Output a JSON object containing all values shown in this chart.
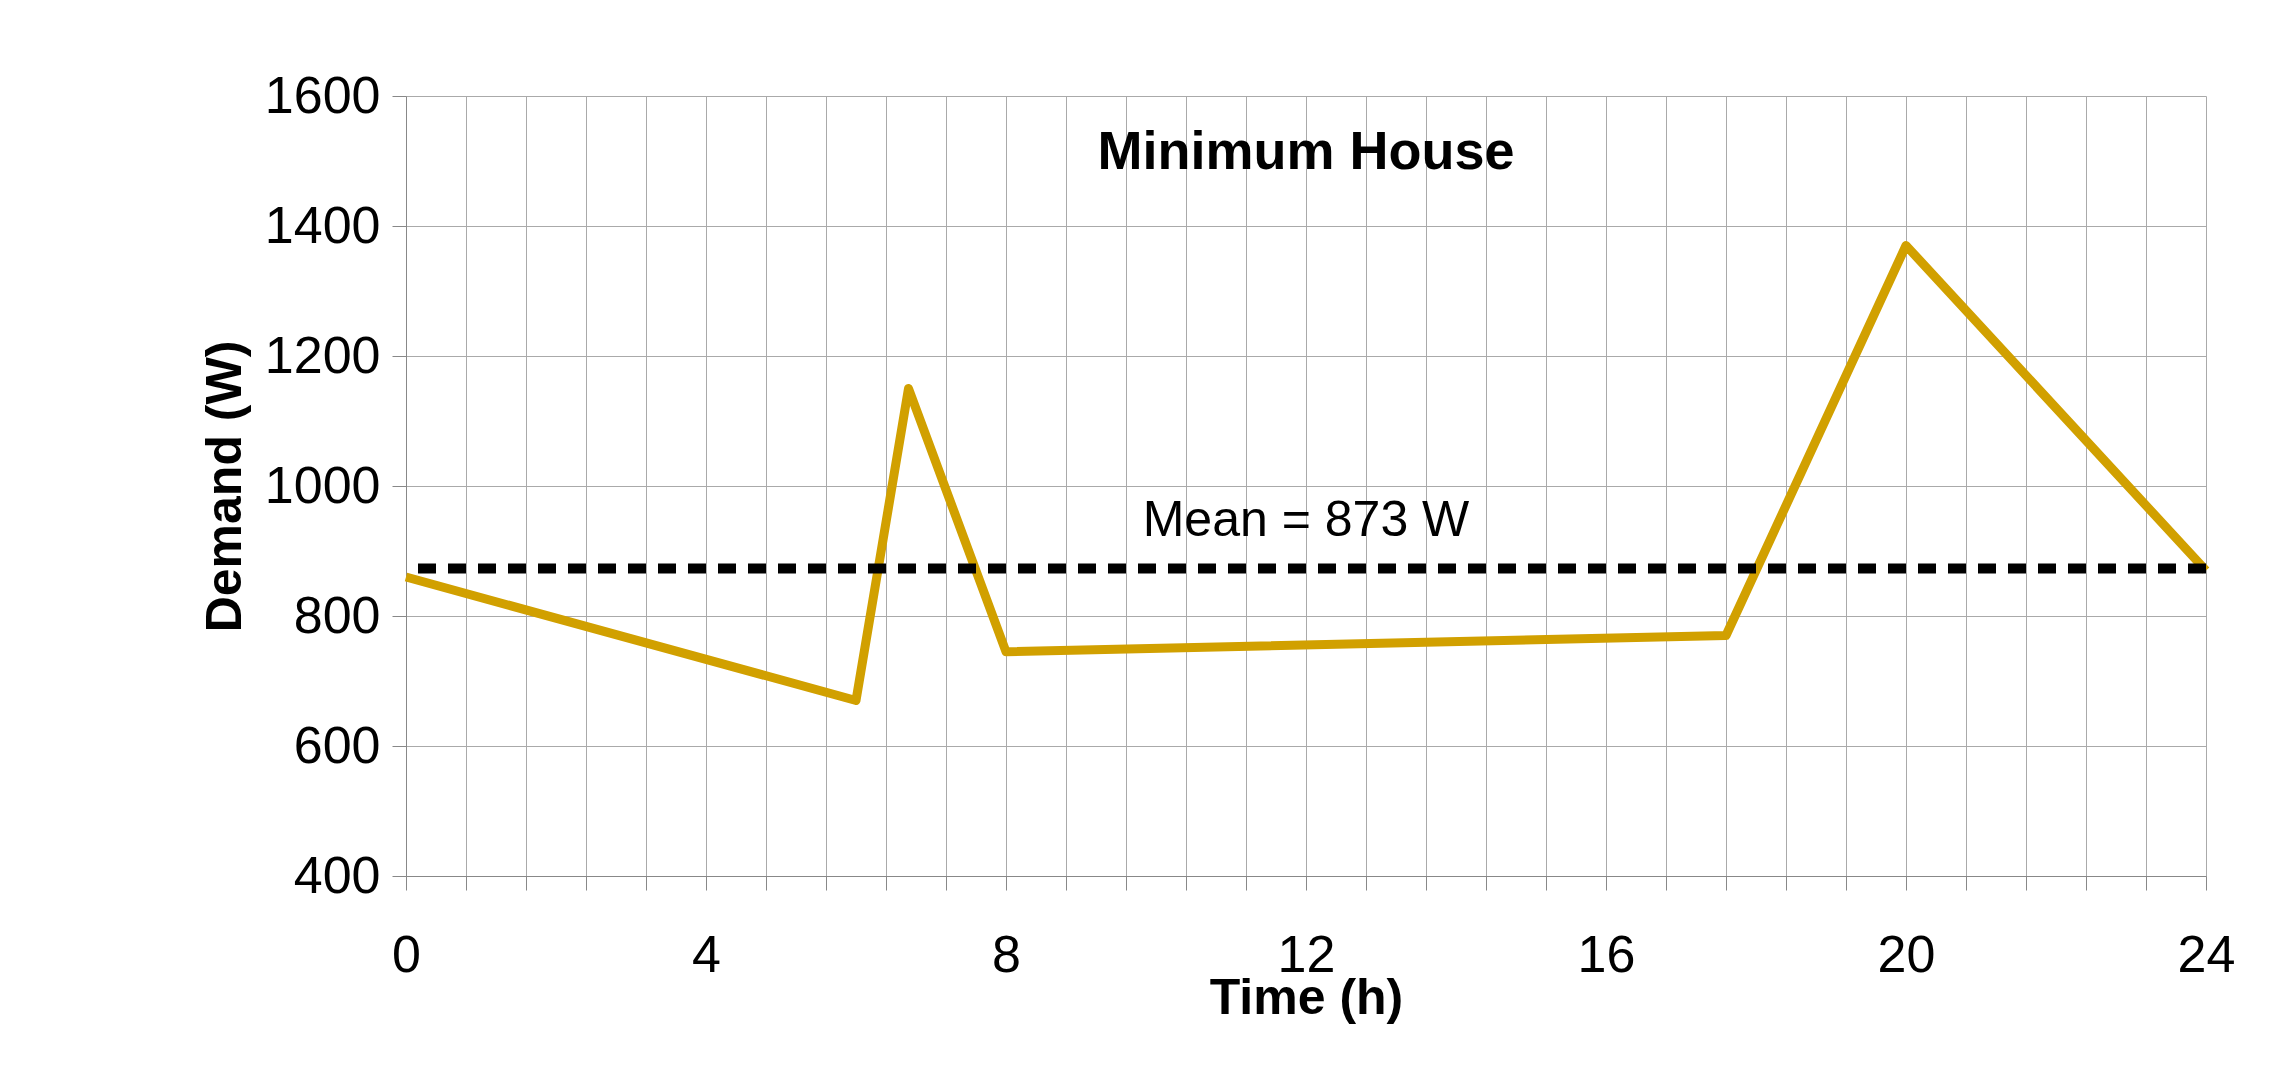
{
  "chart_data": {
    "type": "line",
    "title": "Minimum House",
    "xlabel": "Time (h)",
    "ylabel": "Demand (W)",
    "x": [
      0,
      6,
      6.7,
      8,
      17.6,
      20,
      24
    ],
    "series": [
      {
        "color": "#d1a000",
        "values": [
          860,
          670,
          1150,
          745,
          770,
          1370,
          870
        ]
      }
    ],
    "xlim": [
      0,
      24
    ],
    "xticks": [
      0,
      {
        "value": 0.8,
        "label": null
      },
      {
        "value": 1.6,
        "label": null
      },
      {
        "value": 2.4,
        "label": null
      },
      {
        "value": 3.2,
        "label": null
      },
      4,
      {
        "value": 4.8,
        "label": null
      },
      {
        "value": 5.6,
        "label": null
      },
      {
        "value": 6.4,
        "label": null
      },
      {
        "value": 7.2,
        "label": null
      },
      8,
      {
        "value": 8.8,
        "label": null
      },
      {
        "value": 9.6,
        "label": null
      },
      {
        "value": 10.4,
        "label": null
      },
      {
        "value": 11.2,
        "label": null
      },
      12,
      {
        "value": 12.8,
        "label": null
      },
      {
        "value": 13.6,
        "label": null
      },
      {
        "value": 14.4,
        "label": null
      },
      {
        "value": 15.2,
        "label": null
      },
      16,
      {
        "value": 16.8,
        "label": null
      },
      {
        "value": 17.6,
        "label": null
      },
      {
        "value": 18.4,
        "label": null
      },
      {
        "value": 19.2,
        "label": null
      },
      20,
      {
        "value": 20.8,
        "label": null
      },
      {
        "value": 21.6,
        "label": null
      },
      {
        "value": 22.4,
        "label": null
      },
      {
        "value": 23.2,
        "label": null
      },
      24
    ],
    "ylim": [
      400,
      1600
    ],
    "yticks": [
      400,
      600,
      800,
      1000,
      1200,
      1400,
      1600
    ],
    "grid": true,
    "legend": false,
    "marker": "none",
    "line_style": "solid",
    "ref_lines": [
      {
        "axis": "y",
        "value": 873,
        "label": "Mean = 873 W",
        "color": "#000000",
        "line_style": "dashed"
      }
    ]
  }
}
